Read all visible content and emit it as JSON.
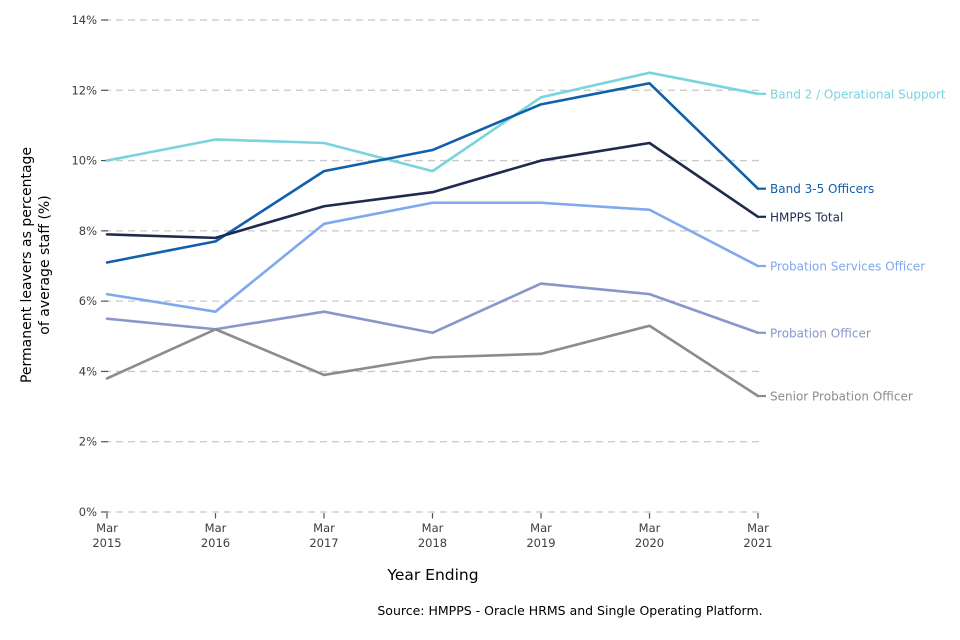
{
  "chart_data": {
    "type": "line",
    "categories": [
      "Mar 2015",
      "Mar 2016",
      "Mar 2017",
      "Mar 2018",
      "Mar 2019",
      "Mar 2020",
      "Mar 2021"
    ],
    "series": [
      {
        "name": "Band 2 / Operational Support",
        "color": "#79D4DE",
        "values": [
          10.0,
          10.6,
          10.5,
          9.7,
          11.8,
          12.5,
          11.9
        ]
      },
      {
        "name": "Band 3-5 Officers",
        "color": "#1060AC",
        "values": [
          7.1,
          7.7,
          9.7,
          10.3,
          11.6,
          12.2,
          9.2
        ]
      },
      {
        "name": "HMPPS Total",
        "color": "#1F2A4E",
        "values": [
          7.9,
          7.8,
          8.7,
          9.1,
          10.0,
          10.5,
          8.4
        ]
      },
      {
        "name": "Probation Services Officer",
        "color": "#7FA8EF",
        "values": [
          6.2,
          5.7,
          8.2,
          8.8,
          8.8,
          8.6,
          7.0
        ]
      },
      {
        "name": "Probation Officer",
        "color": "#8797C9",
        "values": [
          5.5,
          5.2,
          5.7,
          5.1,
          6.5,
          6.2,
          5.1
        ]
      },
      {
        "name": "Senior Probation Officer",
        "color": "#8C8C8C",
        "values": [
          3.8,
          5.2,
          3.9,
          4.4,
          4.5,
          5.3,
          3.3
        ]
      }
    ],
    "xlabel": "Year Ending",
    "ylabel": "Permanent leavers as percentage of average staff (%)",
    "ylabel_lines": [
      "Permanent leavers as percentage",
      "of average staff (%)"
    ],
    "ylim": [
      0,
      14
    ],
    "ytick_step": 2,
    "ytick_format": "{v}%",
    "grid": "horizontal dashed",
    "legend_position": "direct labels at right end of lines",
    "source": "Source: HMPPS - Oracle HRMS and Single Operating Platform."
  },
  "colors": {
    "grid": "#C8C8C8",
    "tick_mark": "#555555",
    "tick_label": "#3D3D3D",
    "text": "#000000",
    "background": "#FFFFFF"
  }
}
